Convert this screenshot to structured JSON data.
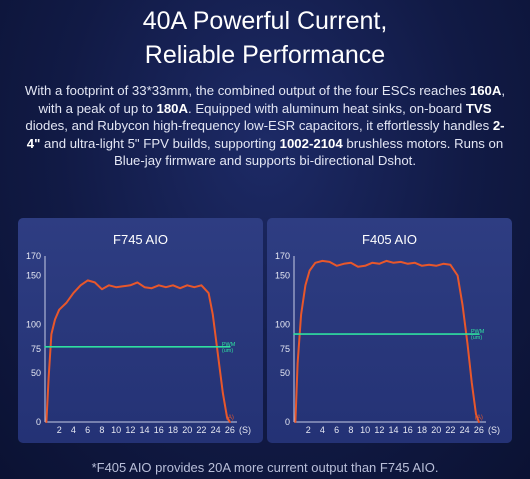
{
  "header": {
    "title_line1": "40A Powerful Current,",
    "title_line2": "Reliable Performance"
  },
  "description": {
    "p1": "With a footprint of 33*33mm, the combined output of the four ESCs reaches ",
    "h1": "160A",
    "p2": ", with a peak of up to ",
    "h2": "180A",
    "p3": ". Equipped with aluminum heat sinks, on-board ",
    "h3": "TVS",
    "p4": " diodes, and Rubycon high-frequency low-ESR capacitors, it effortlessly handles ",
    "h4": "2-4\"",
    "p5": " and ultra-light 5\" FPV builds, supporting ",
    "h5": "1002-2104",
    "p6": " brushless motors. Runs on Blue-jay firmware and supports bi-directional Dshot."
  },
  "footnote": "*F405 AIO provides 20A more current output than F745 AIO.",
  "chart_data": [
    {
      "type": "line",
      "title": "F745 AIO",
      "xlabel": "(S)",
      "ylabel": "",
      "xlim": [
        0,
        27
      ],
      "ylim": [
        0,
        170
      ],
      "x_ticks": [
        2,
        4,
        6,
        8,
        10,
        12,
        14,
        16,
        18,
        20,
        22,
        24,
        26
      ],
      "y_ticks": [
        0,
        50,
        100,
        150,
        170
      ],
      "y_tick_labels": [
        "0",
        "50",
        "100",
        "150",
        "170"
      ],
      "extra_y_label": {
        "value": 75,
        "text": "75"
      },
      "series": [
        {
          "name": "(A)",
          "color": "#e8572b",
          "x": [
            0.2,
            0.5,
            0.9,
            1.4,
            2.0,
            3.0,
            4.0,
            5.0,
            6.0,
            7.0,
            8.0,
            9.0,
            10.0,
            11.0,
            12.0,
            13.0,
            14.0,
            15.0,
            16.0,
            17.0,
            18.0,
            19.0,
            20.0,
            21.0,
            22.0,
            23.0,
            23.6,
            24.3,
            25.0,
            25.6,
            26.0
          ],
          "y": [
            0,
            45,
            90,
            105,
            115,
            122,
            132,
            140,
            145,
            143,
            136,
            140,
            138,
            139,
            140,
            143,
            138,
            137,
            140,
            138,
            140,
            137,
            140,
            138,
            140,
            132,
            110,
            70,
            30,
            5,
            0
          ]
        },
        {
          "name": "PWM (um)",
          "color": "#2fe0a0",
          "x": [
            0,
            26
          ],
          "y": [
            77,
            77
          ]
        }
      ]
    },
    {
      "type": "line",
      "title": "F405 AIO",
      "xlabel": "(S)",
      "ylabel": "",
      "xlim": [
        0,
        27
      ],
      "ylim": [
        0,
        170
      ],
      "x_ticks": [
        2,
        4,
        6,
        8,
        10,
        12,
        14,
        16,
        18,
        20,
        22,
        24,
        26
      ],
      "y_ticks": [
        0,
        50,
        100,
        150,
        170
      ],
      "y_tick_labels": [
        "0",
        "50",
        "100",
        "150",
        "170"
      ],
      "extra_y_label": {
        "value": 75,
        "text": "75"
      },
      "series": [
        {
          "name": "(A)",
          "color": "#e8572b",
          "x": [
            0.2,
            0.5,
            1.0,
            1.6,
            2.2,
            3.0,
            4.0,
            5.0,
            6.0,
            7.0,
            8.0,
            9.0,
            10.0,
            11.0,
            12.0,
            13.0,
            14.0,
            15.0,
            16.0,
            17.0,
            18.0,
            19.0,
            20.0,
            21.0,
            22.0,
            23.0,
            23.7,
            24.4,
            25.0,
            25.6,
            26.0
          ],
          "y": [
            0,
            60,
            110,
            140,
            155,
            163,
            165,
            164,
            160,
            162,
            163,
            159,
            160,
            163,
            162,
            165,
            163,
            164,
            162,
            163,
            160,
            161,
            160,
            162,
            161,
            150,
            120,
            80,
            40,
            8,
            0
          ]
        },
        {
          "name": "PWM (um)",
          "color": "#2fe0a0",
          "x": [
            0,
            26
          ],
          "y": [
            90,
            90
          ]
        }
      ]
    }
  ]
}
